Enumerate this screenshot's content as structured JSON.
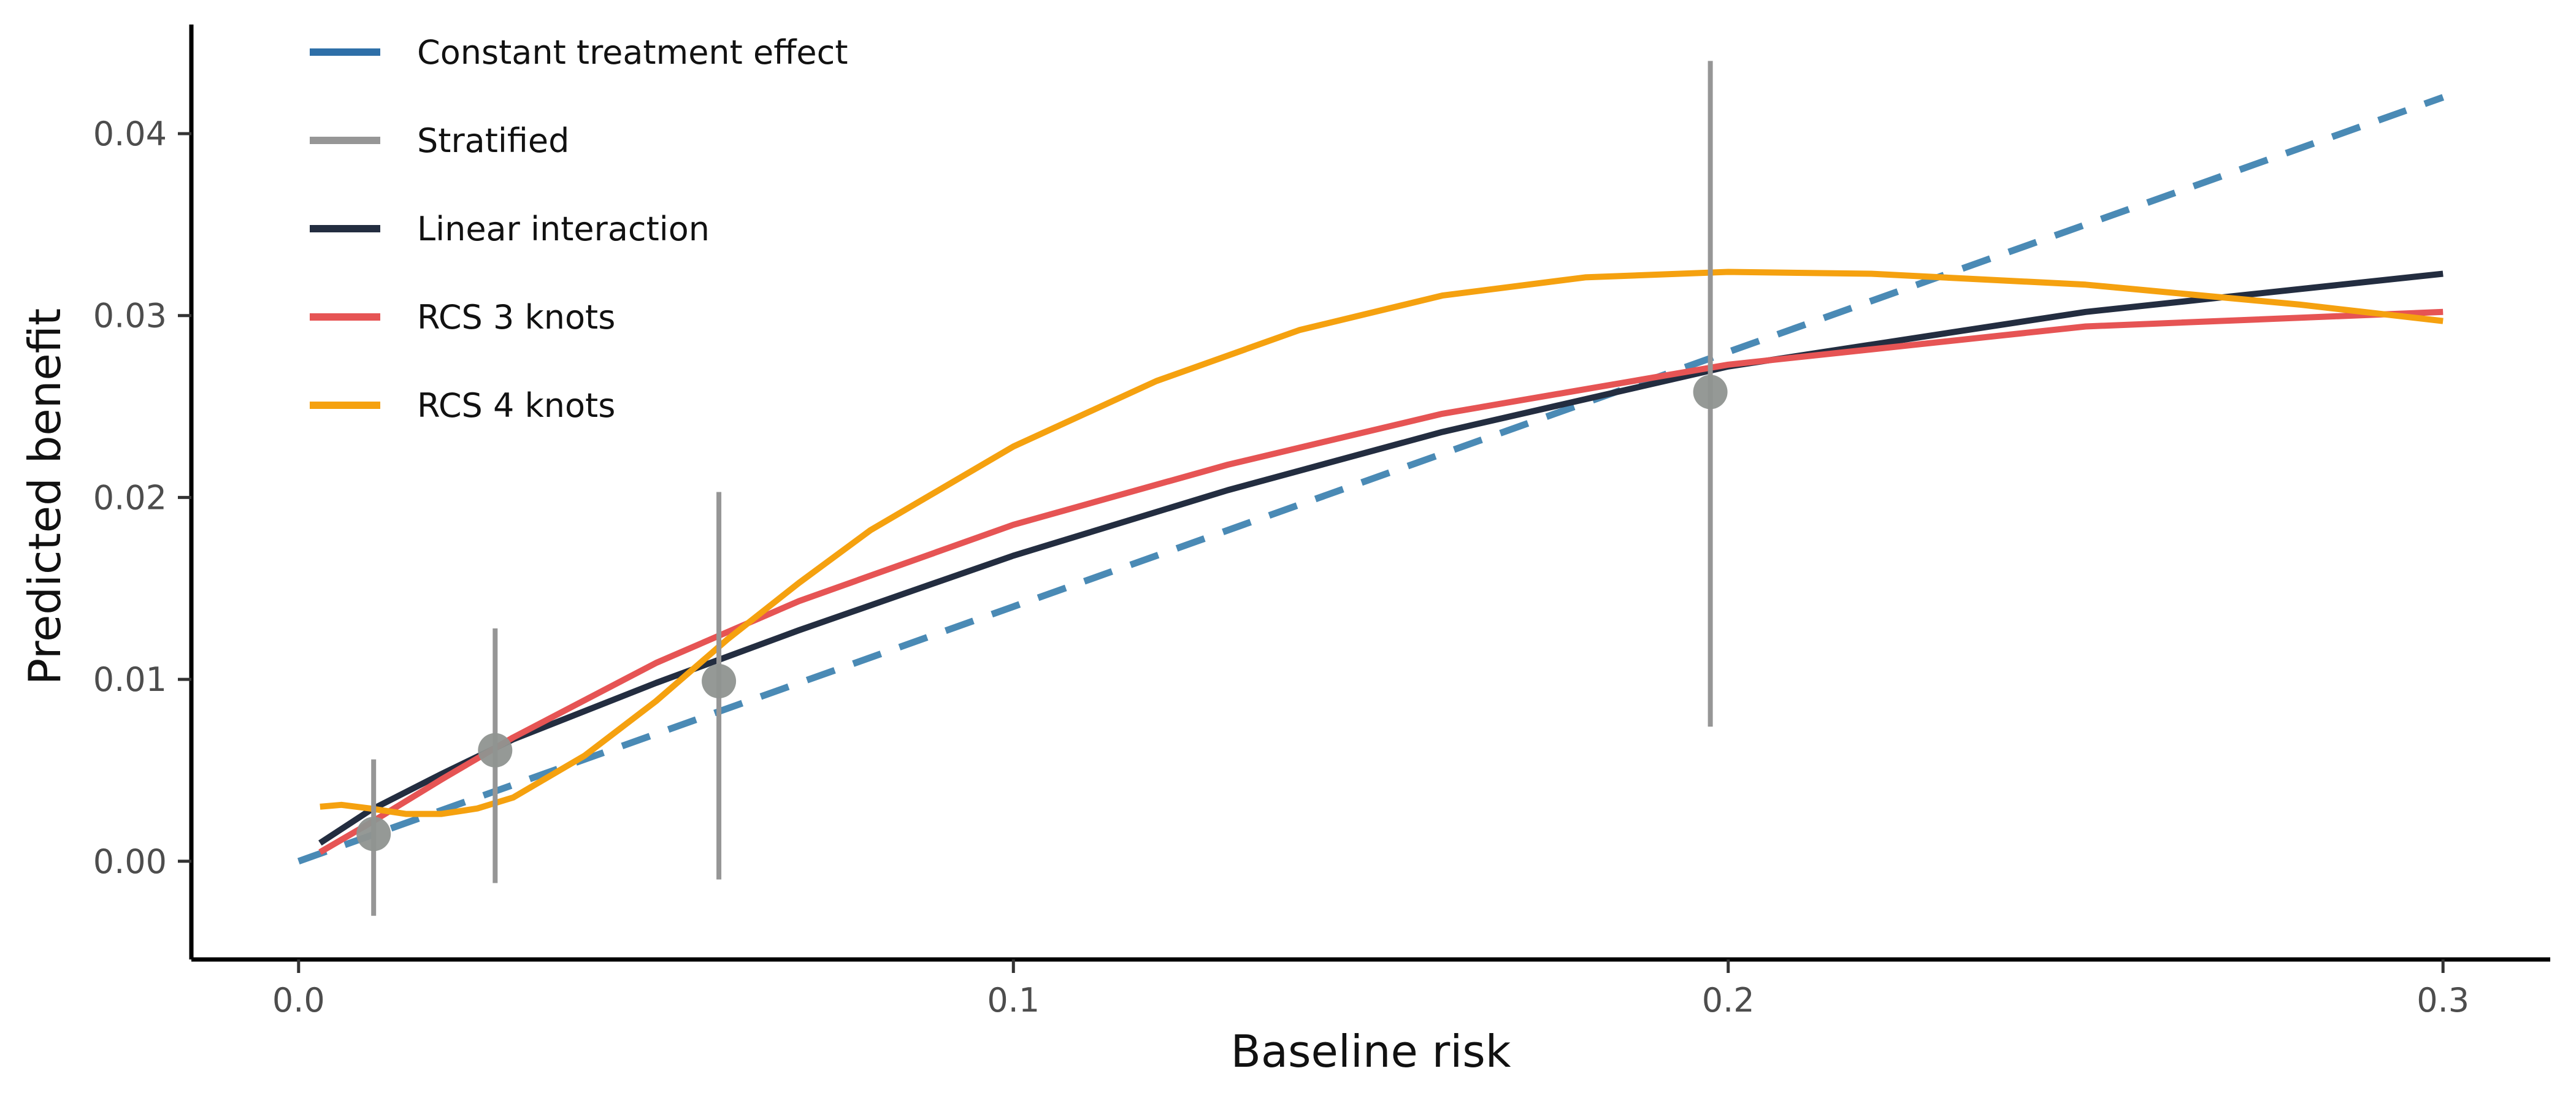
{
  "chart_data": {
    "type": "line",
    "title": "",
    "xlabel": "Baseline risk",
    "ylabel": "Predicted benefit",
    "xlim": [
      -0.015,
      0.315
    ],
    "ylim": [
      -0.0054,
      0.046
    ],
    "x_ticks": [
      0.0,
      0.1,
      0.2,
      0.3
    ],
    "x_tick_labels": [
      "0.0",
      "0.1",
      "0.2",
      "0.3"
    ],
    "y_ticks": [
      0.0,
      0.01,
      0.02,
      0.03,
      0.04
    ],
    "y_tick_labels": [
      "0.00",
      "0.01",
      "0.02",
      "0.03",
      "0.04"
    ],
    "grid": false,
    "legend_placement": "top-left",
    "legend": [
      {
        "label": "Constant treatment effect",
        "color": "#2e6fa8"
      },
      {
        "label": "Stratified",
        "color": "#969696"
      },
      {
        "label": "Linear interaction",
        "color": "#232d40"
      },
      {
        "label": "RCS 3 knots",
        "color": "#e65454"
      },
      {
        "label": "RCS 4 knots",
        "color": "#f5a10f"
      }
    ],
    "series": [
      {
        "name": "Constant treatment effect",
        "style": "dashed",
        "color": "#4a8ab5",
        "x": [
          0.0,
          0.3
        ],
        "y": [
          0.0,
          0.042
        ]
      },
      {
        "name": "Linear interaction",
        "style": "solid",
        "color": "#232d40",
        "x": [
          0.003,
          0.01,
          0.02,
          0.03,
          0.05,
          0.07,
          0.1,
          0.13,
          0.16,
          0.2,
          0.25,
          0.3
        ],
        "y": [
          0.001,
          0.0028,
          0.0048,
          0.0067,
          0.0098,
          0.0127,
          0.0168,
          0.0204,
          0.0236,
          0.0272,
          0.0302,
          0.0323
        ]
      },
      {
        "name": "RCS 3 knots",
        "style": "solid",
        "color": "#e65454",
        "x": [
          0.003,
          0.01,
          0.02,
          0.03,
          0.05,
          0.07,
          0.1,
          0.13,
          0.16,
          0.2,
          0.25,
          0.3
        ],
        "y": [
          0.0005,
          0.0021,
          0.0045,
          0.0068,
          0.0109,
          0.0143,
          0.0185,
          0.0218,
          0.0246,
          0.0273,
          0.0294,
          0.0302
        ]
      },
      {
        "name": "RCS 4 knots",
        "style": "solid",
        "color": "#f5a10f",
        "x": [
          0.003,
          0.006,
          0.01,
          0.015,
          0.02,
          0.025,
          0.03,
          0.04,
          0.05,
          0.06,
          0.07,
          0.08,
          0.1,
          0.12,
          0.14,
          0.16,
          0.18,
          0.2,
          0.22,
          0.25,
          0.28,
          0.3
        ],
        "y": [
          0.003,
          0.0031,
          0.0029,
          0.0026,
          0.0026,
          0.0029,
          0.0035,
          0.0058,
          0.0088,
          0.0122,
          0.0153,
          0.0182,
          0.0228,
          0.0264,
          0.0292,
          0.0311,
          0.0321,
          0.0324,
          0.0323,
          0.0317,
          0.0306,
          0.0297
        ]
      }
    ],
    "stratified": {
      "name": "Stratified",
      "color": "#969696",
      "points": [
        {
          "x": 0.0105,
          "y": 0.0015,
          "lower": -0.003,
          "upper": 0.0056
        },
        {
          "x": 0.0275,
          "y": 0.0061,
          "lower": -0.0012,
          "upper": 0.0128
        },
        {
          "x": 0.0588,
          "y": 0.0099,
          "lower": -0.001,
          "upper": 0.0203
        },
        {
          "x": 0.1975,
          "y": 0.0258,
          "lower": 0.0074,
          "upper": 0.044
        }
      ]
    }
  }
}
